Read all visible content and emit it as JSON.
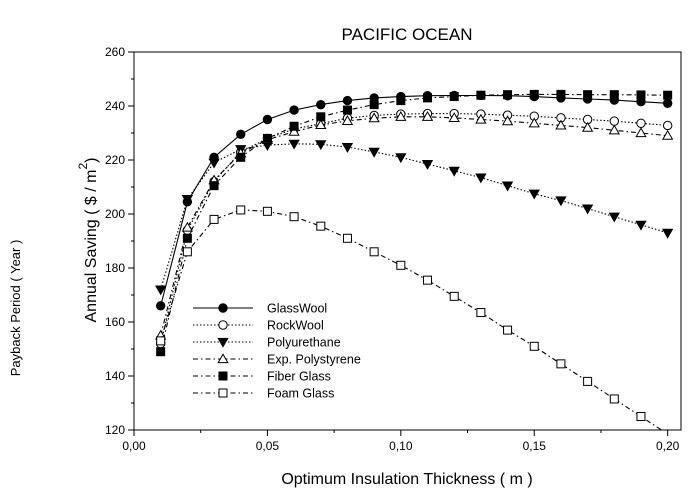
{
  "chart_data": {
    "type": "line",
    "title": "PACIFIC OCEAN",
    "xlabel": "Optimum Insulation Thickness ( m )",
    "ylabel_text": "Annual Saving ( $ / m",
    "ylabel_sup": "2",
    "ylabel_close": ")",
    "y2label": "Payback Period ( Year )",
    "xlim": [
      0.0,
      0.205
    ],
    "ylim": [
      120,
      260
    ],
    "xticks": [
      "0,00",
      "0,05",
      "0,10",
      "0,15",
      "0,20"
    ],
    "yticks": [
      "120",
      "140",
      "160",
      "180",
      "200",
      "220",
      "240",
      "260"
    ],
    "legend_position": "bottom-left",
    "grid": false,
    "x": [
      0.01,
      0.02,
      0.03,
      0.04,
      0.05,
      0.06,
      0.07,
      0.08,
      0.09,
      0.1,
      0.11,
      0.12,
      0.13,
      0.14,
      0.15,
      0.16,
      0.17,
      0.18,
      0.19,
      0.2
    ],
    "series": [
      {
        "name": "GlassWool",
        "marker": "circle-filled",
        "line": "solid",
        "values": [
          166,
          204.5,
          221,
          229.5,
          235,
          238.5,
          240.5,
          242,
          243,
          243.5,
          243.8,
          243.9,
          243.9,
          243.8,
          243.5,
          243,
          242.6,
          242.2,
          241.6,
          241
        ]
      },
      {
        "name": "RockWool",
        "marker": "circle-open",
        "line": "dotted",
        "values": [
          152,
          194,
          212,
          223,
          228,
          231.5,
          233.5,
          235.5,
          236.5,
          237,
          237.2,
          237.2,
          237,
          236.6,
          236.2,
          235.6,
          235,
          234.4,
          233.6,
          232.8
        ]
      },
      {
        "name": "Polyurethane",
        "marker": "triangle-down-filled",
        "line": "dotted",
        "values": [
          172,
          205.5,
          219,
          224,
          225.5,
          226,
          225.8,
          224.8,
          223,
          221,
          218.5,
          216,
          213.5,
          210.5,
          207.5,
          205,
          202,
          199,
          196,
          193
        ]
      },
      {
        "name": "Exp. Polystyrene",
        "marker": "triangle-up-open",
        "line": "dashdot",
        "values": [
          155,
          195,
          212.5,
          222.5,
          227.5,
          230.5,
          233,
          234.5,
          235.5,
          236,
          236,
          235.6,
          235,
          234.4,
          233.6,
          232.8,
          232,
          231,
          230,
          229
        ]
      },
      {
        "name": "Fiber Glass",
        "marker": "square-filled",
        "line": "dashdot",
        "values": [
          149,
          191,
          210.5,
          221,
          228,
          232.5,
          236,
          238.5,
          240.5,
          242,
          243,
          243.5,
          244,
          244.2,
          244.3,
          244.3,
          244.2,
          244.2,
          244.1,
          244
        ]
      },
      {
        "name": "Foam Glass",
        "marker": "square-open",
        "line": "dashdot",
        "values": [
          153,
          186,
          198,
          201.5,
          201,
          199,
          195.5,
          191,
          186,
          181,
          175.5,
          169.5,
          163.5,
          157,
          151,
          144.5,
          138,
          131.5,
          125,
          118.5
        ]
      }
    ]
  }
}
